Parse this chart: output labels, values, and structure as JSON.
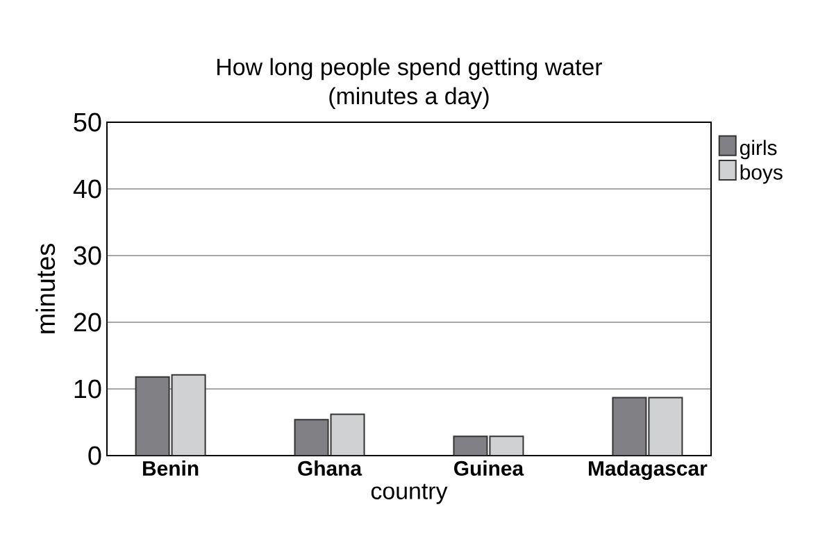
{
  "chart_data": {
    "type": "bar",
    "title": "How long people spend getting water",
    "subtitle": "(minutes a day)",
    "xlabel": "country",
    "ylabel": "minutes",
    "categories": [
      "Benin",
      "Ghana",
      "Guinea",
      "Madagascar"
    ],
    "series": [
      {
        "name": "girls",
        "color": "#808085",
        "values": [
          11.8,
          5.4,
          2.9,
          8.7
        ]
      },
      {
        "name": "boys",
        "color": "#d0d1d3",
        "values": [
          12.1,
          6.2,
          2.9,
          8.7
        ]
      }
    ],
    "ylim": [
      0,
      50
    ],
    "yticks": [
      0,
      10,
      20,
      30,
      40,
      50
    ],
    "grid": "y",
    "legend": "top right"
  }
}
